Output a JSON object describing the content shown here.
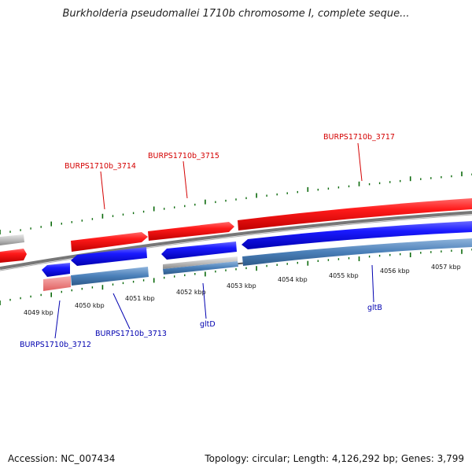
{
  "header": {
    "title": "Burkholderia pseudomallei 1710b chromosome I, complete seque..."
  },
  "footer": {
    "accession": "Accession: NC_007434",
    "summary": "Topology: circular; Length: 4,126,292 bp; Genes: 3,799"
  },
  "scale": {
    "ticks": [
      {
        "label": "4049 kbp"
      },
      {
        "label": "4050 kbp"
      },
      {
        "label": "4051 kbp"
      },
      {
        "label": "4052 kbp"
      },
      {
        "label": "4053 kbp"
      },
      {
        "label": "4054 kbp"
      },
      {
        "label": "4055 kbp"
      },
      {
        "label": "4056 kbp"
      },
      {
        "label": "4057 kbp"
      }
    ]
  },
  "genes": {
    "forward": [
      {
        "name": "BURPS1710b_3714"
      },
      {
        "name": "BURPS1710b_3715"
      },
      {
        "name": "BURPS1710b_3717"
      }
    ],
    "reverse": [
      {
        "name": "BURPS1710b_3712"
      },
      {
        "name": "BURPS1710b_3713"
      },
      {
        "name": "gltD"
      },
      {
        "name": "gltB"
      }
    ]
  },
  "colors": {
    "forward_gene": "#ff2020",
    "forward_gene_dark": "#c00000",
    "reverse_gene": "#2020ff",
    "reverse_gene_dark": "#0000b0",
    "cds_reverse": "#4a7fb8",
    "cds_forward_faded": "#f08080",
    "backbone": "#777777",
    "minor_tick": "#0b6a0b",
    "forward_label": "#d40000",
    "reverse_label": "#0000b0"
  }
}
